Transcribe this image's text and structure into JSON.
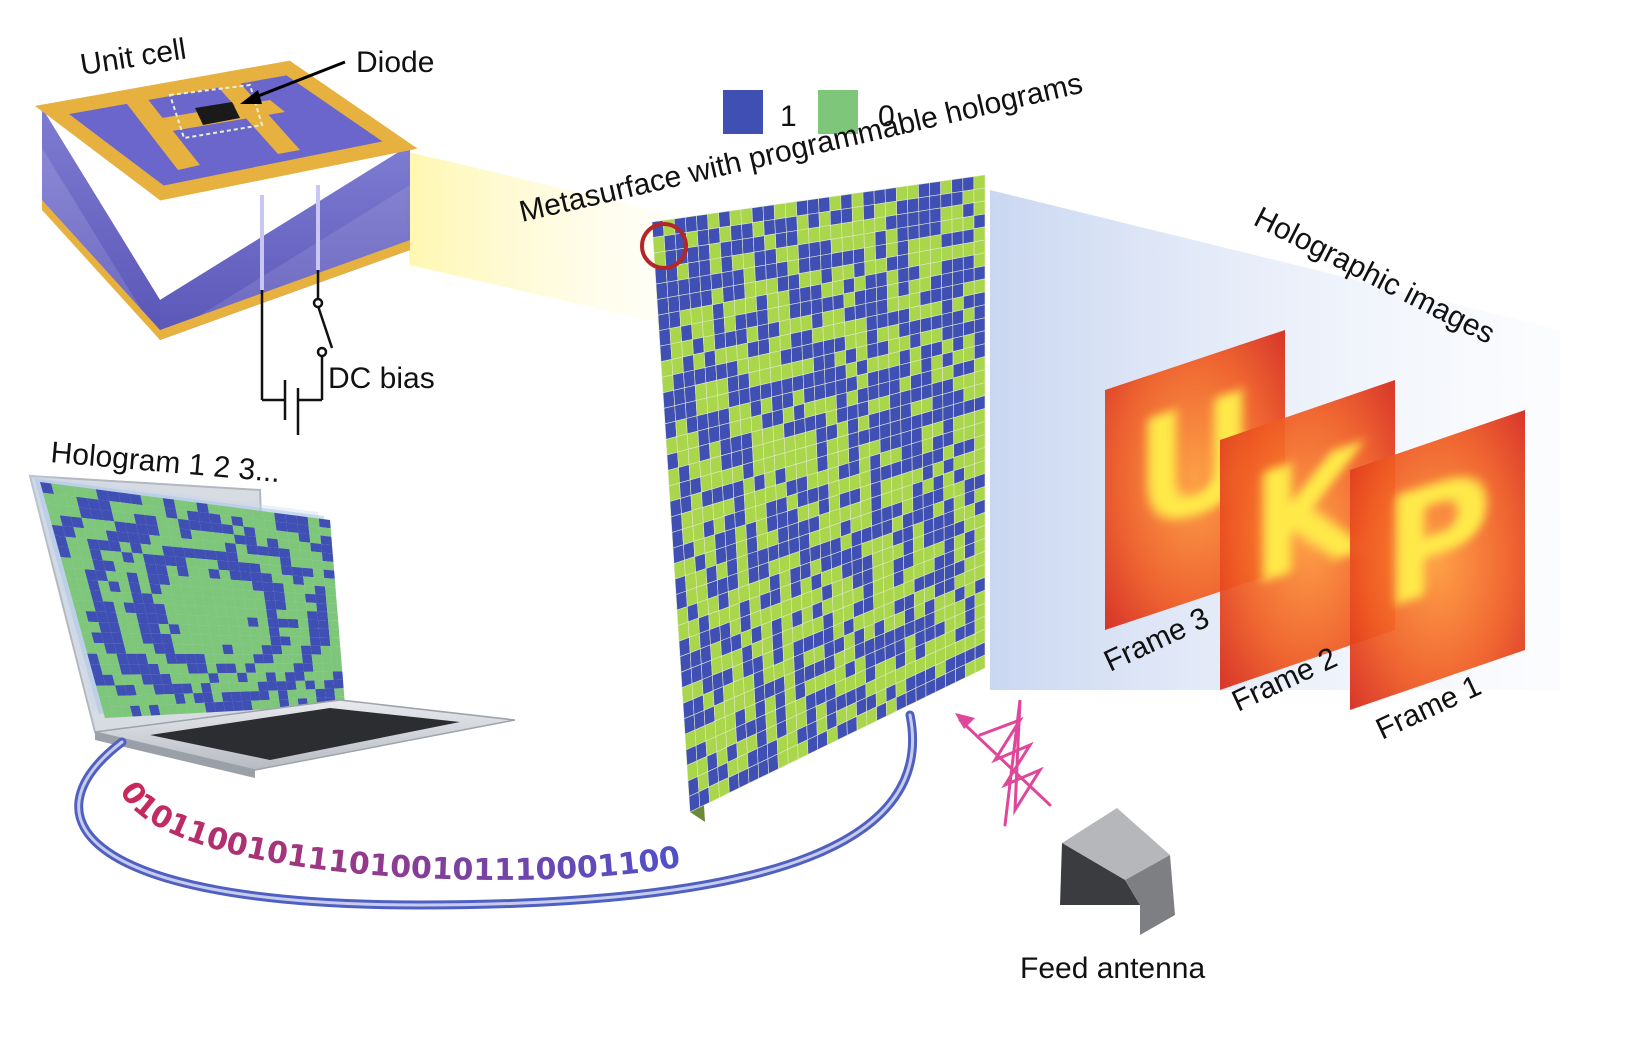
{
  "labels": {
    "unit_cell": "Unit cell",
    "diode": "Diode",
    "dc_bias": "DC bias",
    "hologram": "Hologram 1 2 3...",
    "legend_one": "1",
    "legend_zero": "0",
    "metasurface": "Metasurface with programmable holograms",
    "holographic_images": "Holographic images",
    "frame3": "Frame 3",
    "frame2": "Frame 2",
    "frame1": "Frame 1",
    "feed_antenna": "Feed antenna"
  },
  "bitstream": "0101100101110100101110001100",
  "frame_letters": {
    "frame3": "U",
    "frame2": "K",
    "frame1": "P"
  },
  "colors": {
    "state_one": "#3f4fb4",
    "state_zero": "#a9d64a",
    "laptop_zero": "#7ec77a",
    "gold": "#e7b140",
    "substrate": "#6a68c4",
    "wave": "#e0479a",
    "marker": "#b3262b",
    "ring": "#5060c0",
    "frame_hot": "#d62a1a",
    "frame_mid": "#ff8a2a",
    "frame_letter": "#ffe94a"
  }
}
